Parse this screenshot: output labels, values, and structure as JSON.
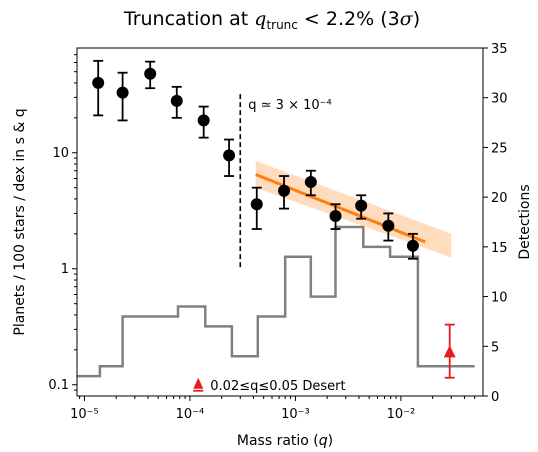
{
  "chart_data": {
    "type": "scatter",
    "title": "Truncation at q_trunc < 2.2% (3σ)",
    "xlabel": "Mass ratio (q)",
    "ylabel_left": "Planets / 100 stars / dex in s & q",
    "ylabel_right": "Detections",
    "x_scale": "log",
    "xlim": [
      8.5e-06,
      0.06
    ],
    "y_left_scale": "log",
    "ylim_left": [
      0.08,
      80
    ],
    "ylim_right": [
      0,
      35
    ],
    "x_tick_labels": [
      "10⁻⁵",
      "10⁻⁴",
      "10⁻³",
      "10⁻²"
    ],
    "x_ticks": [
      1e-05,
      0.0001,
      0.001,
      0.01
    ],
    "y_left_tick_labels": [
      "0.1",
      "1",
      "10"
    ],
    "y_left_ticks": [
      0.1,
      1,
      10
    ],
    "y_right_ticks": [
      0,
      5,
      10,
      15,
      20,
      25,
      30,
      35
    ],
    "y_right_tick_labels": [
      "0",
      "5",
      "10",
      "15",
      "20",
      "25",
      "30",
      "35"
    ],
    "points": [
      {
        "q": 1.35e-05,
        "y": 40,
        "lo": 21,
        "hi": 62
      },
      {
        "q": 2.3e-05,
        "y": 33,
        "lo": 19,
        "hi": 49
      },
      {
        "q": 4.2e-05,
        "y": 48,
        "lo": 36,
        "hi": 61
      },
      {
        "q": 7.5e-05,
        "y": 28,
        "lo": 20,
        "hi": 37
      },
      {
        "q": 0.000135,
        "y": 19,
        "lo": 13.5,
        "hi": 25
      },
      {
        "q": 0.000235,
        "y": 9.5,
        "lo": 6.3,
        "hi": 13
      },
      {
        "q": 0.00043,
        "y": 3.6,
        "lo": 2.2,
        "hi": 5.0
      },
      {
        "q": 0.00078,
        "y": 4.7,
        "lo": 3.3,
        "hi": 6.3
      },
      {
        "q": 0.0014,
        "y": 5.6,
        "lo": 4.3,
        "hi": 7.0
      },
      {
        "q": 0.0024,
        "y": 2.85,
        "lo": 2.2,
        "hi": 3.6
      },
      {
        "q": 0.0042,
        "y": 3.5,
        "lo": 2.7,
        "hi": 4.3
      },
      {
        "q": 0.0076,
        "y": 2.35,
        "lo": 1.75,
        "hi": 3.0
      },
      {
        "q": 0.013,
        "y": 1.58,
        "lo": 1.22,
        "hi": 2.0
      }
    ],
    "desert_limit": {
      "q": 0.00012,
      "y": 0.1,
      "label": "0.02≤q≤0.05 Desert"
    },
    "red_point": {
      "q": 0.029,
      "y": 0.19,
      "lo": 0.115,
      "hi": 0.33
    },
    "break_line": {
      "q": 0.0003,
      "y_top": 32,
      "y_bottom": 1.0,
      "label": "q ≃ 3 × 10⁻⁴"
    },
    "fit_line": {
      "x": [
        0.00042,
        0.017
      ],
      "y": [
        6.5,
        1.7
      ]
    },
    "fit_band": {
      "x": [
        0.00042,
        0.03
      ],
      "upper": [
        8.5,
        2.0
      ],
      "lower": [
        5.0,
        1.25
      ]
    },
    "detections_histogram": {
      "edges": [
        8.5e-06,
        1.4e-05,
        2.3e-05,
        4.2e-05,
        7.7e-05,
        0.00014,
        0.00025,
        0.00044,
        0.0008,
        0.0014,
        0.0024,
        0.0044,
        0.0079,
        0.0145,
        0.026,
        0.05
      ],
      "counts": [
        2,
        3,
        8,
        8,
        9,
        7,
        4,
        8,
        14,
        10,
        17,
        15,
        14,
        3,
        3
      ]
    },
    "colors": {
      "points": "#000000",
      "fit": "#ff7f0e",
      "band": "#ffbf86",
      "histogram": "#808080",
      "red": "#e8191f"
    }
  }
}
